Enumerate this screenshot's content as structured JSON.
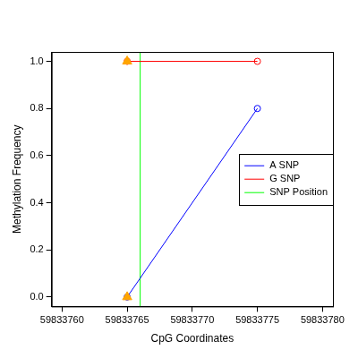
{
  "chart_data": {
    "type": "line",
    "x_label": "CpG Coordinates",
    "y_label": "Methylation Frequency",
    "xlim": [
      59833759.2,
      59833780.8
    ],
    "xticks": [
      59833760,
      59833765,
      59833770,
      59833775,
      59833780
    ],
    "ylim": [
      -0.04,
      1.04
    ],
    "yticks": [
      {
        "value": 0,
        "label": "0.0"
      },
      {
        "value": 0.2,
        "label": "0.2"
      },
      {
        "value": 0.4,
        "label": "0.4"
      },
      {
        "value": 0.6,
        "label": "0.6"
      },
      {
        "value": 0.8,
        "label": "0.8"
      },
      {
        "value": 1,
        "label": "1.0"
      }
    ],
    "grid": false,
    "legend": "right",
    "series": [
      {
        "name": "A SNP",
        "color": "#0000FF",
        "marker": "circle",
        "line_style": "solid",
        "x": [
          59833765,
          59833775
        ],
        "values": [
          0,
          0.8
        ]
      },
      {
        "name": "G SNP",
        "color": "#FF0000",
        "marker": "circle",
        "line_style": "solid",
        "x": [
          59833765,
          59833775
        ],
        "values": [
          1,
          1
        ]
      },
      {
        "name": "SNP Position",
        "color": "#00FF00",
        "marker": "none",
        "line_style": "solid",
        "x": [
          59833766,
          59833766
        ],
        "values": [
          -0.04,
          1.04
        ]
      },
      {
        "color": "#FFA500",
        "marker": "triangle",
        "line_style": "none",
        "x": [
          59833765,
          59833765
        ],
        "values": [
          0,
          1
        ]
      }
    ]
  }
}
